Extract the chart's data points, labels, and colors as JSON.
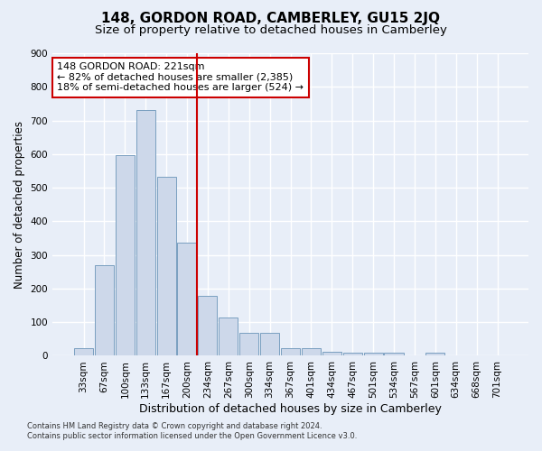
{
  "title": "148, GORDON ROAD, CAMBERLEY, GU15 2JQ",
  "subtitle": "Size of property relative to detached houses in Camberley",
  "xlabel": "Distribution of detached houses by size in Camberley",
  "ylabel": "Number of detached properties",
  "bar_labels": [
    "33sqm",
    "67sqm",
    "100sqm",
    "133sqm",
    "167sqm",
    "200sqm",
    "234sqm",
    "267sqm",
    "300sqm",
    "334sqm",
    "367sqm",
    "401sqm",
    "434sqm",
    "467sqm",
    "501sqm",
    "534sqm",
    "567sqm",
    "601sqm",
    "634sqm",
    "668sqm",
    "701sqm"
  ],
  "bar_values": [
    22,
    270,
    597,
    730,
    533,
    337,
    178,
    115,
    68,
    68,
    22,
    22,
    13,
    8,
    8,
    10,
    0,
    8,
    0,
    0,
    0
  ],
  "bar_color": "#cdd8ea",
  "bar_edge_color": "#7a9fc0",
  "vline_x": 5.5,
  "vline_color": "#cc0000",
  "annotation_text": "148 GORDON ROAD: 221sqm\n← 82% of detached houses are smaller (2,385)\n18% of semi-detached houses are larger (524) →",
  "annotation_box_color": "#ffffff",
  "annotation_box_edge": "#cc0000",
  "ylim": [
    0,
    900
  ],
  "yticks": [
    0,
    100,
    200,
    300,
    400,
    500,
    600,
    700,
    800,
    900
  ],
  "footer1": "Contains HM Land Registry data © Crown copyright and database right 2024.",
  "footer2": "Contains public sector information licensed under the Open Government Licence v3.0.",
  "bg_color": "#e8eef8",
  "plot_bg_color": "#e8eef8",
  "grid_color": "#ffffff",
  "title_fontsize": 11,
  "subtitle_fontsize": 9.5,
  "xlabel_fontsize": 9,
  "ylabel_fontsize": 8.5,
  "tick_fontsize": 7.5,
  "annotation_fontsize": 8,
  "footer_fontsize": 6
}
